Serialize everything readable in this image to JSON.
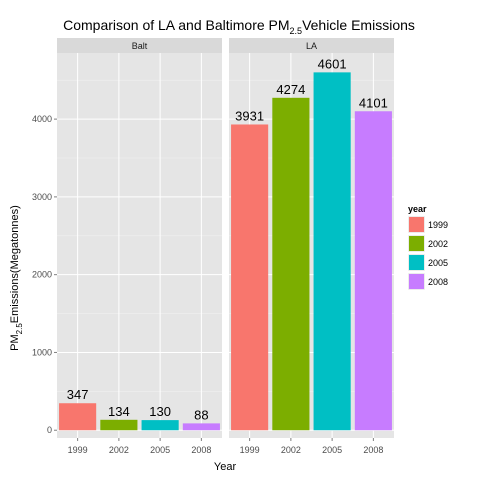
{
  "chart_data": {
    "type": "bar",
    "title_prefix": "Comparison of LA and Baltimore PM",
    "title_sub": "2.5",
    "title_suffix": "Vehicle Emissions",
    "xlabel": "Year",
    "ylabel_prefix": "PM",
    "ylabel_sub": "2.5",
    "ylabel_suffix": "Emissions(Megatonnes)",
    "ylim": [
      -100,
      4850
    ],
    "yticks": [
      0,
      1000,
      2000,
      3000,
      4000
    ],
    "categories": [
      "1999",
      "2002",
      "2005",
      "2008"
    ],
    "facets": [
      {
        "name": "Balt",
        "values": [
          347,
          134,
          130,
          88
        ]
      },
      {
        "name": "LA",
        "values": [
          3931,
          4274,
          4601,
          4101
        ]
      }
    ],
    "legend": {
      "title": "year",
      "entries": [
        {
          "label": "1999",
          "color": "#F8766D"
        },
        {
          "label": "2002",
          "color": "#7CAE00"
        },
        {
          "label": "2005",
          "color": "#00BFC4"
        },
        {
          "label": "2008",
          "color": "#C77CFF"
        }
      ]
    }
  }
}
